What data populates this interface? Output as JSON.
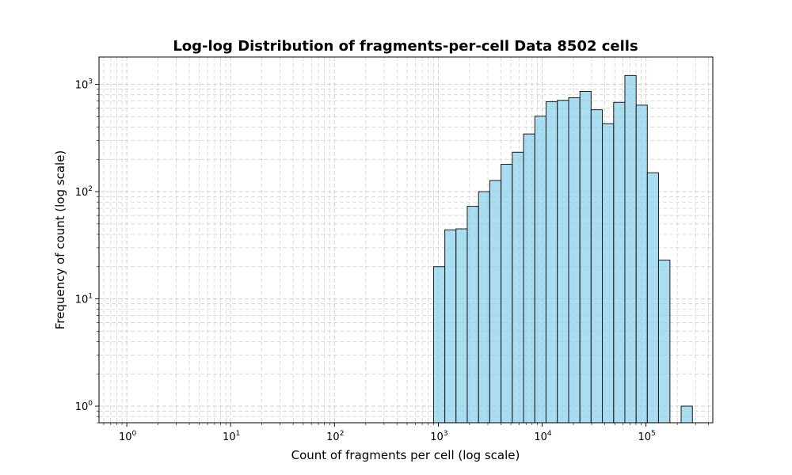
{
  "chart_data": {
    "type": "bar",
    "title": "Log-log Distribution of fragments-per-cell Data 8502 cells",
    "xlabel": "Count of fragments per cell (log scale)",
    "ylabel": "Frequency of count (log scale)",
    "x_scale": "log",
    "y_scale": "log",
    "xlim": [
      0.54,
      440000
    ],
    "ylim": [
      0.7,
      1800
    ],
    "grid": true,
    "x_tick_labels": [
      {
        "base": "10",
        "exp": "0",
        "value": 1
      },
      {
        "base": "10",
        "exp": "1",
        "value": 10
      },
      {
        "base": "10",
        "exp": "2",
        "value": 100
      },
      {
        "base": "10",
        "exp": "3",
        "value": 1000
      },
      {
        "base": "10",
        "exp": "4",
        "value": 10000
      },
      {
        "base": "10",
        "exp": "5",
        "value": 100000
      }
    ],
    "y_tick_labels": [
      {
        "base": "10",
        "exp": "0",
        "value": 1
      },
      {
        "base": "10",
        "exp": "1",
        "value": 10
      },
      {
        "base": "10",
        "exp": "2",
        "value": 100
      },
      {
        "base": "10",
        "exp": "3",
        "value": 1000
      }
    ],
    "bins": [
      {
        "x0": 900,
        "x1": 1155,
        "count": 20
      },
      {
        "x0": 1155,
        "x1": 1480,
        "count": 44
      },
      {
        "x0": 1480,
        "x1": 1900,
        "count": 45
      },
      {
        "x0": 1900,
        "x1": 2440,
        "count": 73
      },
      {
        "x0": 2440,
        "x1": 3130,
        "count": 100
      },
      {
        "x0": 3130,
        "x1": 4020,
        "count": 127
      },
      {
        "x0": 4020,
        "x1": 5160,
        "count": 180
      },
      {
        "x0": 5160,
        "x1": 6620,
        "count": 233
      },
      {
        "x0": 6620,
        "x1": 8500,
        "count": 345
      },
      {
        "x0": 8500,
        "x1": 10900,
        "count": 505
      },
      {
        "x0": 10900,
        "x1": 14000,
        "count": 690
      },
      {
        "x0": 14000,
        "x1": 18000,
        "count": 710
      },
      {
        "x0": 18000,
        "x1": 23100,
        "count": 750
      },
      {
        "x0": 23100,
        "x1": 29600,
        "count": 860
      },
      {
        "x0": 29600,
        "x1": 38000,
        "count": 580
      },
      {
        "x0": 38000,
        "x1": 48800,
        "count": 430
      },
      {
        "x0": 48800,
        "x1": 62600,
        "count": 680
      },
      {
        "x0": 62600,
        "x1": 80400,
        "count": 1210
      },
      {
        "x0": 80400,
        "x1": 103000,
        "count": 640
      },
      {
        "x0": 103000,
        "x1": 132000,
        "count": 150
      },
      {
        "x0": 132000,
        "x1": 170000,
        "count": 23
      },
      {
        "x0": 170000,
        "x1": 218000,
        "count": 0
      },
      {
        "x0": 218000,
        "x1": 280000,
        "count": 1
      }
    ],
    "colors": {
      "bar_fill": "#87ceeb",
      "bar_stroke": "#1a1a1a",
      "grid": "#cccccc",
      "axes": "#000000"
    }
  }
}
